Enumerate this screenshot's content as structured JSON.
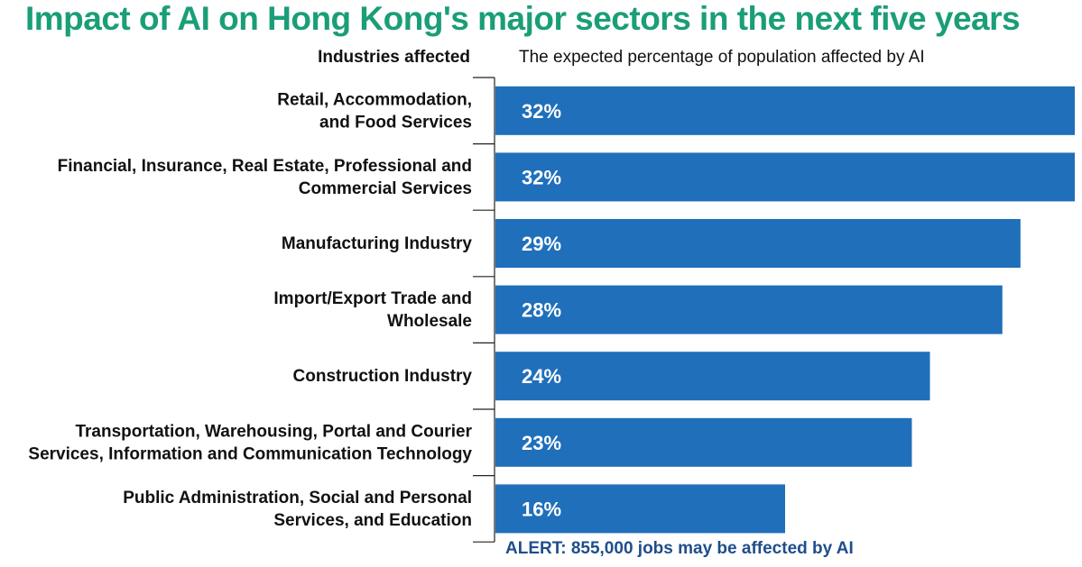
{
  "title": "Impact of AI on Hong Kong's major sectors in the next five years",
  "column_headers": {
    "left": "Industries affected",
    "right": "The expected percentage of population affected by AI"
  },
  "alert": "ALERT: 855,000 jobs may be affected by AI",
  "colors": {
    "title": "#1a9e78",
    "bar": "#1f6fba",
    "alert": "#1f4e8a"
  },
  "chart_data": {
    "type": "bar",
    "orientation": "horizontal",
    "categories": [
      [
        "Retail, Accommodation,",
        "and Food Services"
      ],
      [
        "Financial, Insurance, Real Estate, Professional and",
        "Commercial Services"
      ],
      [
        "Manufacturing Industry"
      ],
      [
        "Import/Export Trade and",
        "Wholesale"
      ],
      [
        "Construction Industry"
      ],
      [
        "Transportation, Warehousing, Portal and Courier",
        "Services, Information and Communication Technology"
      ],
      [
        "Public Administration, Social and Personal",
        "Services, and Education"
      ]
    ],
    "values": [
      32,
      32,
      29,
      28,
      24,
      23,
      16
    ],
    "value_labels": [
      "32%",
      "32%",
      "29%",
      "28%",
      "24%",
      "23%",
      "16%"
    ],
    "unit": "%"
  }
}
